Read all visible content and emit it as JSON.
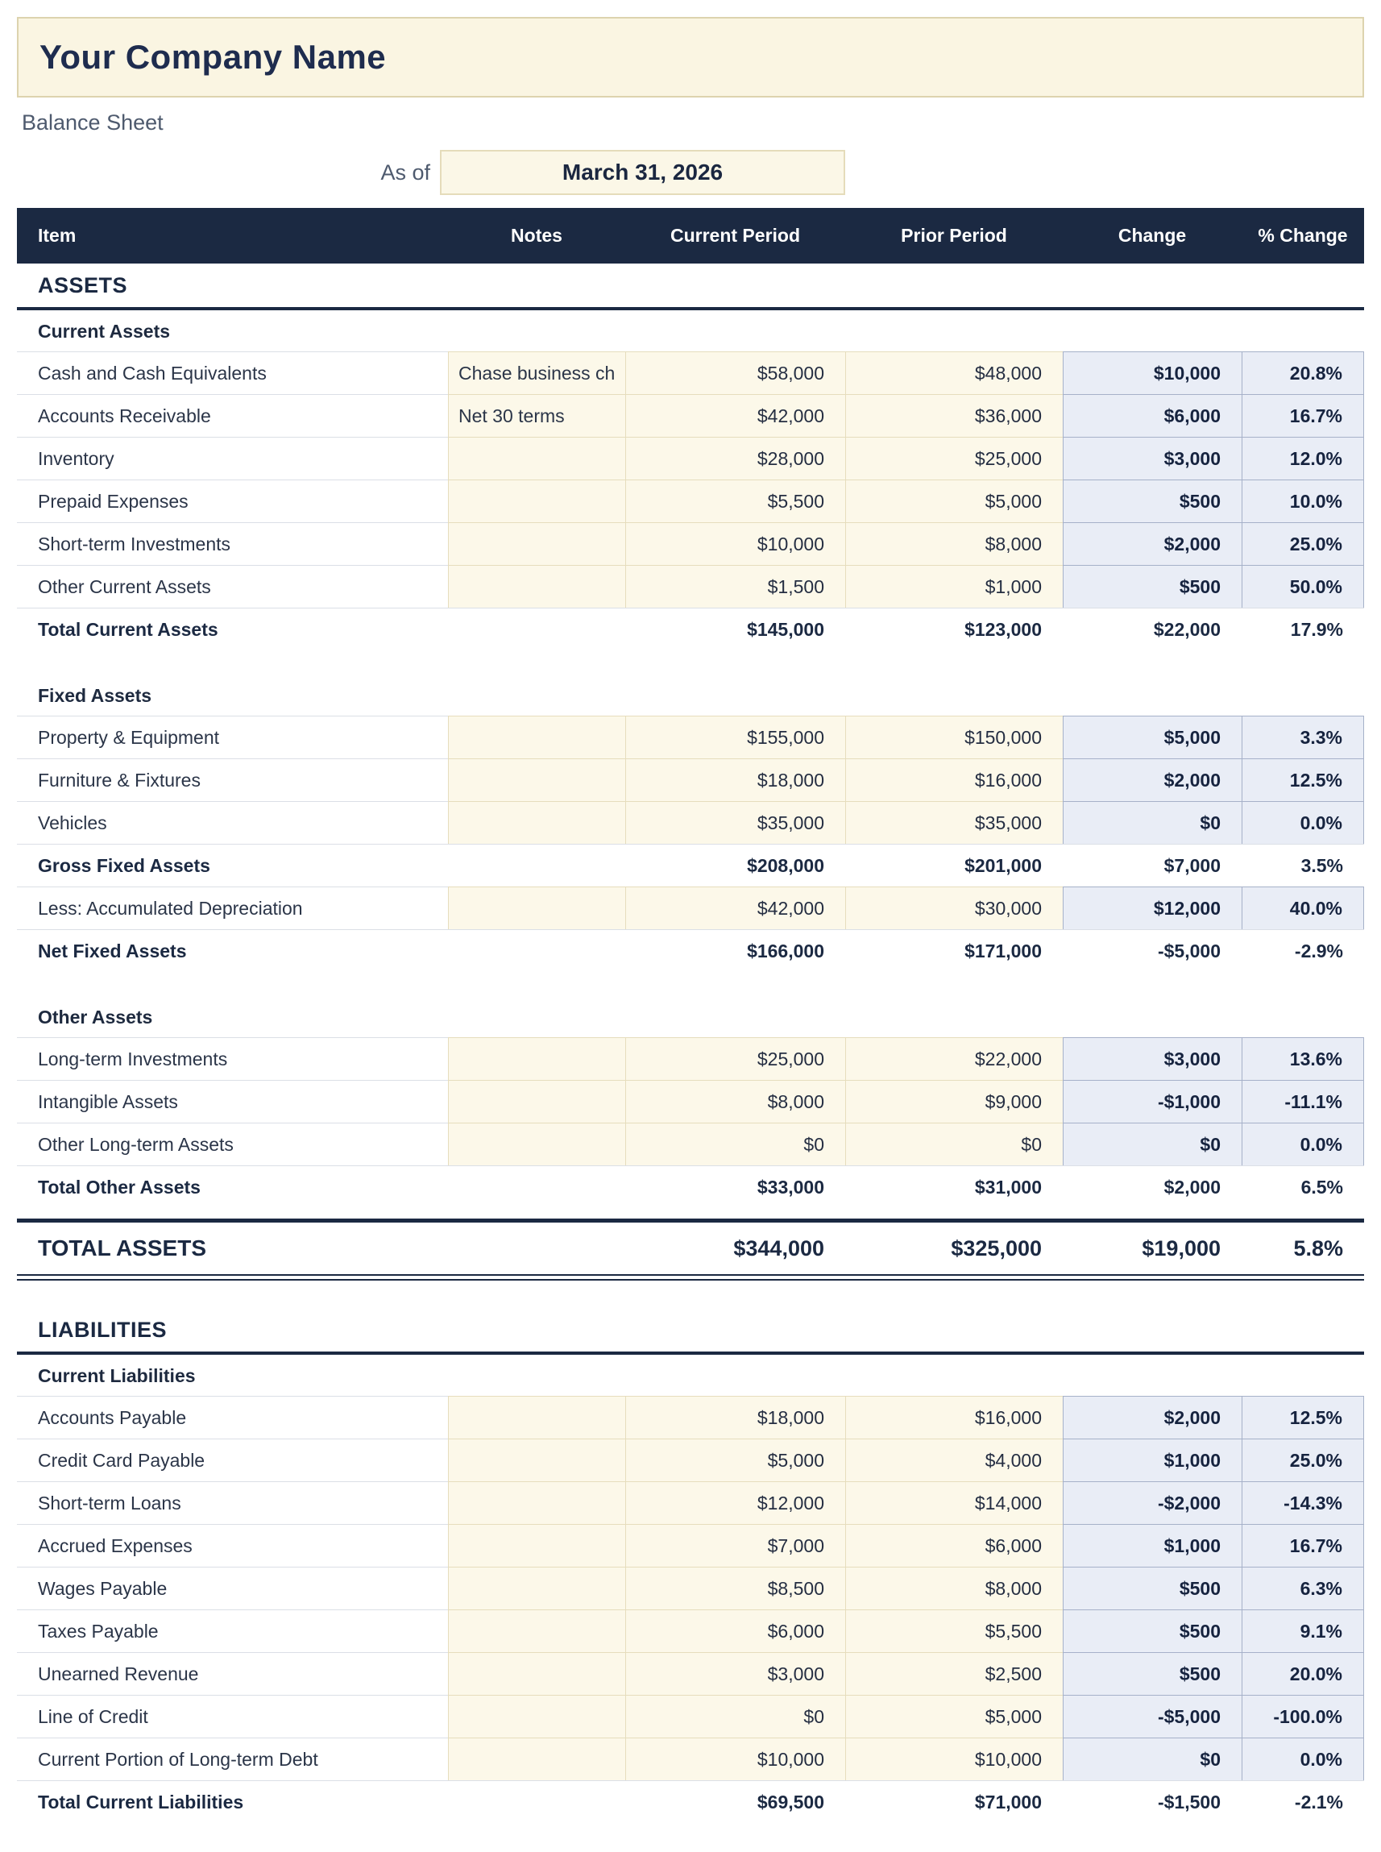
{
  "header": {
    "company_name": "Your Company Name",
    "report_title": "Balance Sheet",
    "as_of_label": "As of",
    "as_of_date": "March 31, 2026"
  },
  "table": {
    "columns": [
      "Item",
      "Notes",
      "Current Period",
      "Prior Period",
      "Change",
      "% Change"
    ]
  },
  "body": [
    {
      "type": "section",
      "label": "ASSETS"
    },
    {
      "type": "subheader",
      "label": "Current Assets"
    },
    {
      "type": "data",
      "item": "Cash and Cash Equivalents",
      "notes": "Chase business ch",
      "current": "$58,000",
      "prior": "$48,000",
      "change": "$10,000",
      "pct": "20.8%"
    },
    {
      "type": "data",
      "item": "Accounts Receivable",
      "notes": "Net 30 terms",
      "current": "$42,000",
      "prior": "$36,000",
      "change": "$6,000",
      "pct": "16.7%"
    },
    {
      "type": "data",
      "item": "Inventory",
      "notes": "",
      "current": "$28,000",
      "prior": "$25,000",
      "change": "$3,000",
      "pct": "12.0%"
    },
    {
      "type": "data",
      "item": "Prepaid Expenses",
      "notes": "",
      "current": "$5,500",
      "prior": "$5,000",
      "change": "$500",
      "pct": "10.0%"
    },
    {
      "type": "data",
      "item": "Short-term Investments",
      "notes": "",
      "current": "$10,000",
      "prior": "$8,000",
      "change": "$2,000",
      "pct": "25.0%"
    },
    {
      "type": "data",
      "item": "Other Current Assets",
      "notes": "",
      "current": "$1,500",
      "prior": "$1,000",
      "change": "$500",
      "pct": "50.0%"
    },
    {
      "type": "total",
      "item": "Total Current Assets",
      "notes": "",
      "current": "$145,000",
      "prior": "$123,000",
      "change": "$22,000",
      "pct": "17.9%"
    },
    {
      "type": "subheader",
      "label": "Fixed Assets",
      "gap": true
    },
    {
      "type": "data",
      "item": "Property & Equipment",
      "notes": "",
      "current": "$155,000",
      "prior": "$150,000",
      "change": "$5,000",
      "pct": "3.3%"
    },
    {
      "type": "data",
      "item": "Furniture & Fixtures",
      "notes": "",
      "current": "$18,000",
      "prior": "$16,000",
      "change": "$2,000",
      "pct": "12.5%"
    },
    {
      "type": "data",
      "item": "Vehicles",
      "notes": "",
      "current": "$35,000",
      "prior": "$35,000",
      "change": "$0",
      "pct": "0.0%"
    },
    {
      "type": "total",
      "item": "Gross Fixed Assets",
      "notes": "",
      "current": "$208,000",
      "prior": "$201,000",
      "change": "$7,000",
      "pct": "3.5%"
    },
    {
      "type": "data",
      "item": "Less: Accumulated Depreciation",
      "notes": "",
      "current": "$42,000",
      "prior": "$30,000",
      "change": "$12,000",
      "pct": "40.0%"
    },
    {
      "type": "total",
      "item": "Net Fixed Assets",
      "notes": "",
      "current": "$166,000",
      "prior": "$171,000",
      "change": "-$5,000",
      "pct": "-2.9%"
    },
    {
      "type": "subheader",
      "label": "Other Assets",
      "gap": true
    },
    {
      "type": "data",
      "item": "Long-term Investments",
      "notes": "",
      "current": "$25,000",
      "prior": "$22,000",
      "change": "$3,000",
      "pct": "13.6%"
    },
    {
      "type": "data",
      "item": "Intangible Assets",
      "notes": "",
      "current": "$8,000",
      "prior": "$9,000",
      "change": "-$1,000",
      "pct": "-11.1%"
    },
    {
      "type": "data",
      "item": "Other Long-term Assets",
      "notes": "",
      "current": "$0",
      "prior": "$0",
      "change": "$0",
      "pct": "0.0%"
    },
    {
      "type": "total",
      "item": "Total Other Assets",
      "notes": "",
      "current": "$33,000",
      "prior": "$31,000",
      "change": "$2,000",
      "pct": "6.5%"
    },
    {
      "type": "grand",
      "item": "TOTAL ASSETS",
      "notes": "",
      "current": "$344,000",
      "prior": "$325,000",
      "change": "$19,000",
      "pct": "5.8%"
    },
    {
      "type": "section",
      "label": "LIABILITIES",
      "gap": true
    },
    {
      "type": "subheader",
      "label": "Current Liabilities"
    },
    {
      "type": "data",
      "item": "Accounts Payable",
      "notes": "",
      "current": "$18,000",
      "prior": "$16,000",
      "change": "$2,000",
      "pct": "12.5%"
    },
    {
      "type": "data",
      "item": "Credit Card Payable",
      "notes": "",
      "current": "$5,000",
      "prior": "$4,000",
      "change": "$1,000",
      "pct": "25.0%"
    },
    {
      "type": "data",
      "item": "Short-term Loans",
      "notes": "",
      "current": "$12,000",
      "prior": "$14,000",
      "change": "-$2,000",
      "pct": "-14.3%"
    },
    {
      "type": "data",
      "item": "Accrued Expenses",
      "notes": "",
      "current": "$7,000",
      "prior": "$6,000",
      "change": "$1,000",
      "pct": "16.7%"
    },
    {
      "type": "data",
      "item": "Wages Payable",
      "notes": "",
      "current": "$8,500",
      "prior": "$8,000",
      "change": "$500",
      "pct": "6.3%"
    },
    {
      "type": "data",
      "item": "Taxes Payable",
      "notes": "",
      "current": "$6,000",
      "prior": "$5,500",
      "change": "$500",
      "pct": "9.1%"
    },
    {
      "type": "data",
      "item": "Unearned Revenue",
      "notes": "",
      "current": "$3,000",
      "prior": "$2,500",
      "change": "$500",
      "pct": "20.0%"
    },
    {
      "type": "data",
      "item": "Line of Credit",
      "notes": "",
      "current": "$0",
      "prior": "$5,000",
      "change": "-$5,000",
      "pct": "-100.0%"
    },
    {
      "type": "data",
      "item": "Current Portion of Long-term Debt",
      "notes": "",
      "current": "$10,000",
      "prior": "$10,000",
      "change": "$0",
      "pct": "0.0%"
    },
    {
      "type": "total",
      "item": "Total Current Liabilities",
      "notes": "",
      "current": "$69,500",
      "prior": "$71,000",
      "change": "-$1,500",
      "pct": "-2.1%"
    }
  ],
  "colors": {
    "navy": "#1b2942",
    "text_navy": "#1e2c4e",
    "text_gray": "#4e5a6e",
    "title_fill": "#faf5e2",
    "title_border": "#ddd3ae",
    "input_cell_fill": "#fcf8e9",
    "input_cell_border": "#e6ddbd",
    "computed_cell_fill": "#e9edf6",
    "computed_cell_border": "#a6b1c9",
    "row_divider": "#dbdfe6"
  }
}
